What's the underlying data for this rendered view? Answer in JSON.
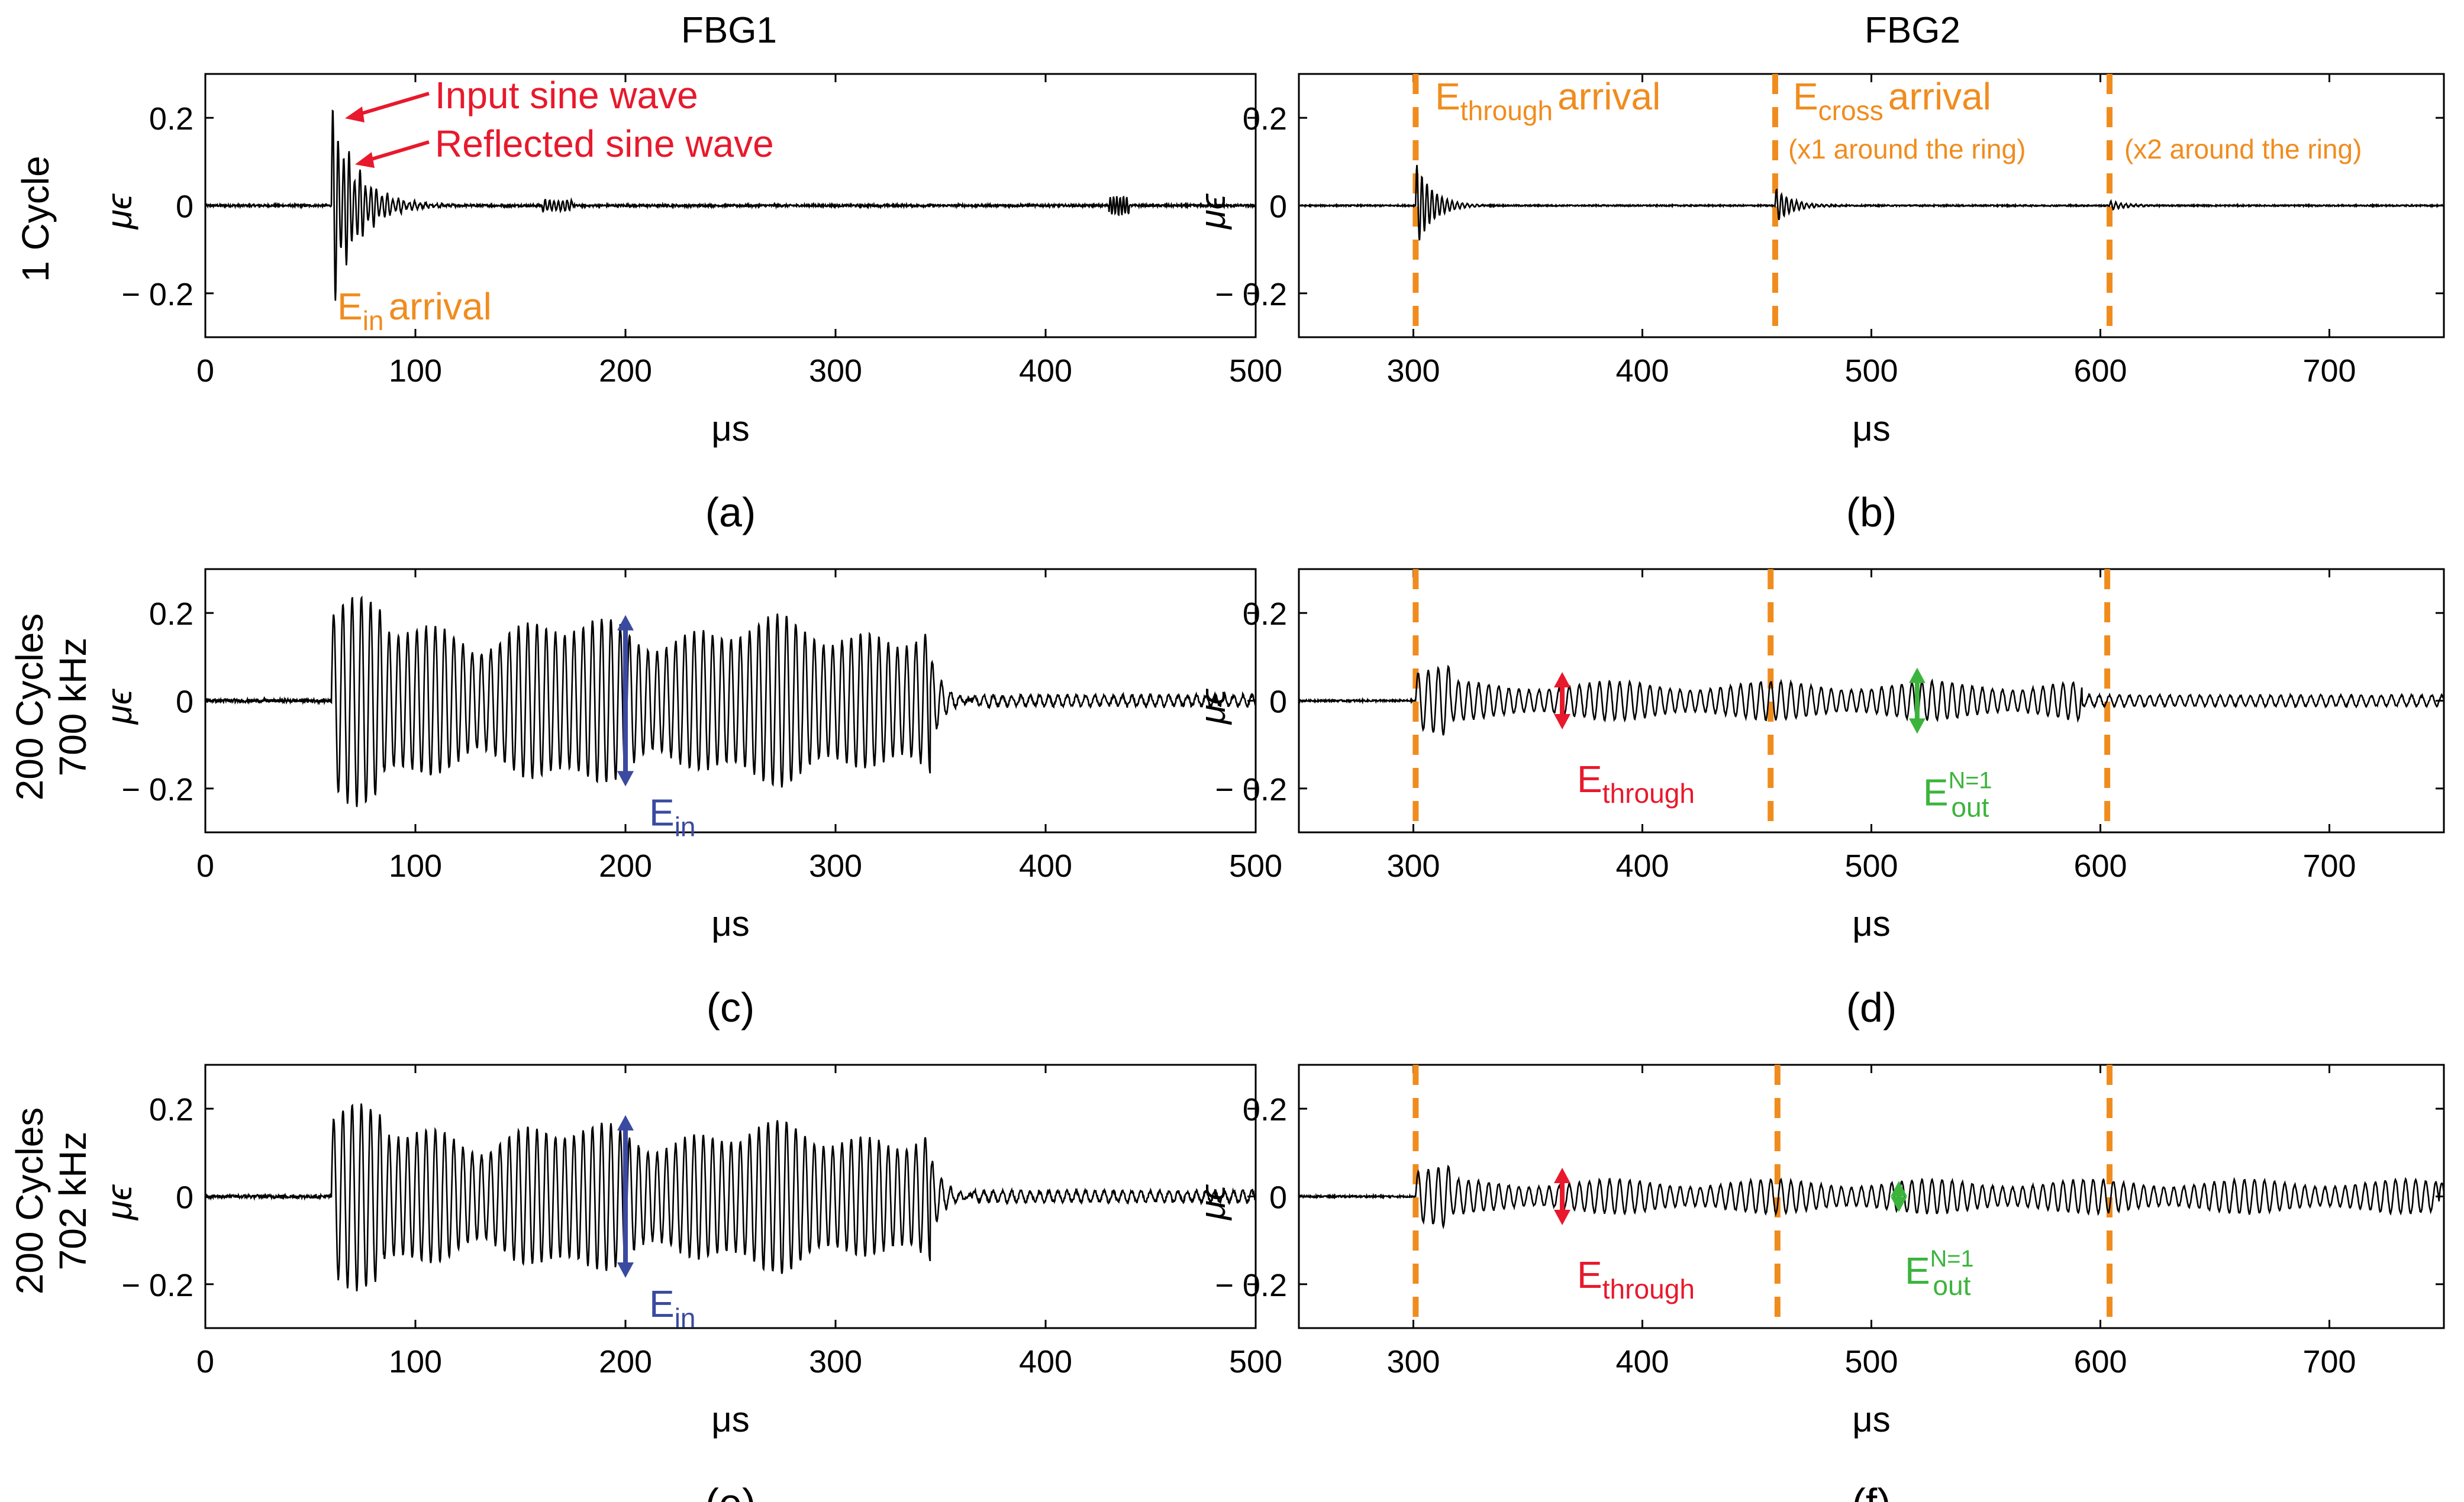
{
  "colors": {
    "orange": "#f08c1e",
    "red": "#e8192c",
    "blue": "#3a4aa0",
    "green": "#3cb43c",
    "black": "#000000"
  },
  "column_titles": [
    "FBG1",
    "FBG2"
  ],
  "row_labels": [
    {
      "line1": "1 Cycle",
      "line2": ""
    },
    {
      "line1": "200 Cycles",
      "line2": "700 kHz"
    },
    {
      "line1": "200 Cycles",
      "line2": "702 kHz"
    }
  ],
  "common": {
    "xlabel": "μs",
    "ylabel": "μϵ",
    "ylim": [
      -0.3,
      0.3
    ],
    "yticks": [
      "0.2",
      "0",
      "− 0.2"
    ]
  },
  "chart_data": [
    {
      "id": "a",
      "caption": "(a)",
      "type": "line",
      "row": 0,
      "col": 0,
      "xlim": [
        0,
        500
      ],
      "xticks": [
        0,
        100,
        200,
        300,
        400,
        500
      ],
      "signal": {
        "kind": "single",
        "start_us": 60,
        "peak_values": [
          0.21,
          -0.16,
          0.09,
          -0.2,
          0.18,
          -0.12,
          0.08,
          0.06,
          0.04,
          0.03
        ],
        "noise_level": 0.005
      },
      "annotations": {
        "input_label": "Input sine wave",
        "reflected_label": "Reflected sine wave",
        "arrival_main": "E",
        "arrival_sub": "in",
        "arrival_rest": "arrival"
      }
    },
    {
      "id": "b",
      "caption": "(b)",
      "type": "line",
      "row": 0,
      "col": 1,
      "xlim": [
        250,
        750
      ],
      "xticks": [
        300,
        400,
        500,
        600,
        700
      ],
      "dashed_lines_us": [
        301,
        458,
        604
      ],
      "signal": {
        "kind": "single_fbg2",
        "events_us": [
          301,
          458,
          604
        ],
        "event_amplitudes": [
          0.1,
          0.04,
          0.01
        ],
        "noise_level": 0.003
      },
      "annotations": {
        "through_main": "E",
        "through_sub": "through",
        "through_rest": "arrival",
        "cross_main": "E",
        "cross_sub": "cross",
        "cross_rest": "arrival",
        "x1_label": "(x1 around the ring)",
        "x2_label": "(x2 around the ring)"
      }
    },
    {
      "id": "c",
      "caption": "(c)",
      "type": "line",
      "row": 1,
      "col": 0,
      "xlim": [
        0,
        500
      ],
      "xticks": [
        0,
        100,
        200,
        300,
        400,
        500
      ],
      "signal": {
        "kind": "burst",
        "start_us": 60,
        "end_us": 345,
        "amplitude": 0.18,
        "tail_end_us": 365,
        "noise_level": 0.008
      },
      "annotations": {
        "arrow_x_us": 200,
        "arrow_range": [
          -0.19,
          0.19
        ],
        "label_main": "E",
        "label_sub": "in"
      }
    },
    {
      "id": "d",
      "caption": "(d)",
      "type": "line",
      "row": 1,
      "col": 1,
      "xlim": [
        250,
        750
      ],
      "xticks": [
        300,
        400,
        500,
        600,
        700
      ],
      "dashed_lines_us": [
        301,
        456,
        603
      ],
      "signal": {
        "kind": "fbg2_burst",
        "start_us": 301,
        "end_us": 592,
        "amplitude": 0.04,
        "after_amplitude": 0.012,
        "noise_level": 0.004
      },
      "annotations": {
        "through_x_us": 365,
        "through_range": [
          -0.06,
          0.06
        ],
        "through_main": "E",
        "through_sub": "through",
        "out_x_us": 520,
        "out_range": [
          -0.07,
          0.07
        ],
        "out_main": "E",
        "out_sub": "out",
        "out_sup": "N=1"
      }
    },
    {
      "id": "e",
      "caption": "(e)",
      "type": "line",
      "row": 2,
      "col": 0,
      "xlim": [
        0,
        500
      ],
      "xticks": [
        0,
        100,
        200,
        300,
        400,
        500
      ],
      "signal": {
        "kind": "burst",
        "start_us": 60,
        "end_us": 345,
        "amplitude": 0.16,
        "tail_end_us": 365,
        "noise_level": 0.008
      },
      "annotations": {
        "arrow_x_us": 200,
        "arrow_range": [
          -0.18,
          0.18
        ],
        "label_main": "E",
        "label_sub": "in"
      }
    },
    {
      "id": "f",
      "caption": "(f)",
      "type": "line",
      "row": 2,
      "col": 1,
      "xlim": [
        250,
        750
      ],
      "xticks": [
        300,
        400,
        500,
        600,
        700
      ],
      "dashed_lines_us": [
        301,
        459,
        604
      ],
      "signal": {
        "kind": "fbg2_burst",
        "start_us": 301,
        "end_us": 748,
        "amplitude": 0.035,
        "after_amplitude": 0.03,
        "noise_level": 0.004
      },
      "annotations": {
        "through_x_us": 365,
        "through_range": [
          -0.06,
          0.06
        ],
        "through_main": "E",
        "through_sub": "through",
        "out_x_us": 512,
        "out_range": [
          -0.03,
          0.03
        ],
        "out_main": "E",
        "out_sub": "out",
        "out_sup": "N=1"
      }
    }
  ]
}
